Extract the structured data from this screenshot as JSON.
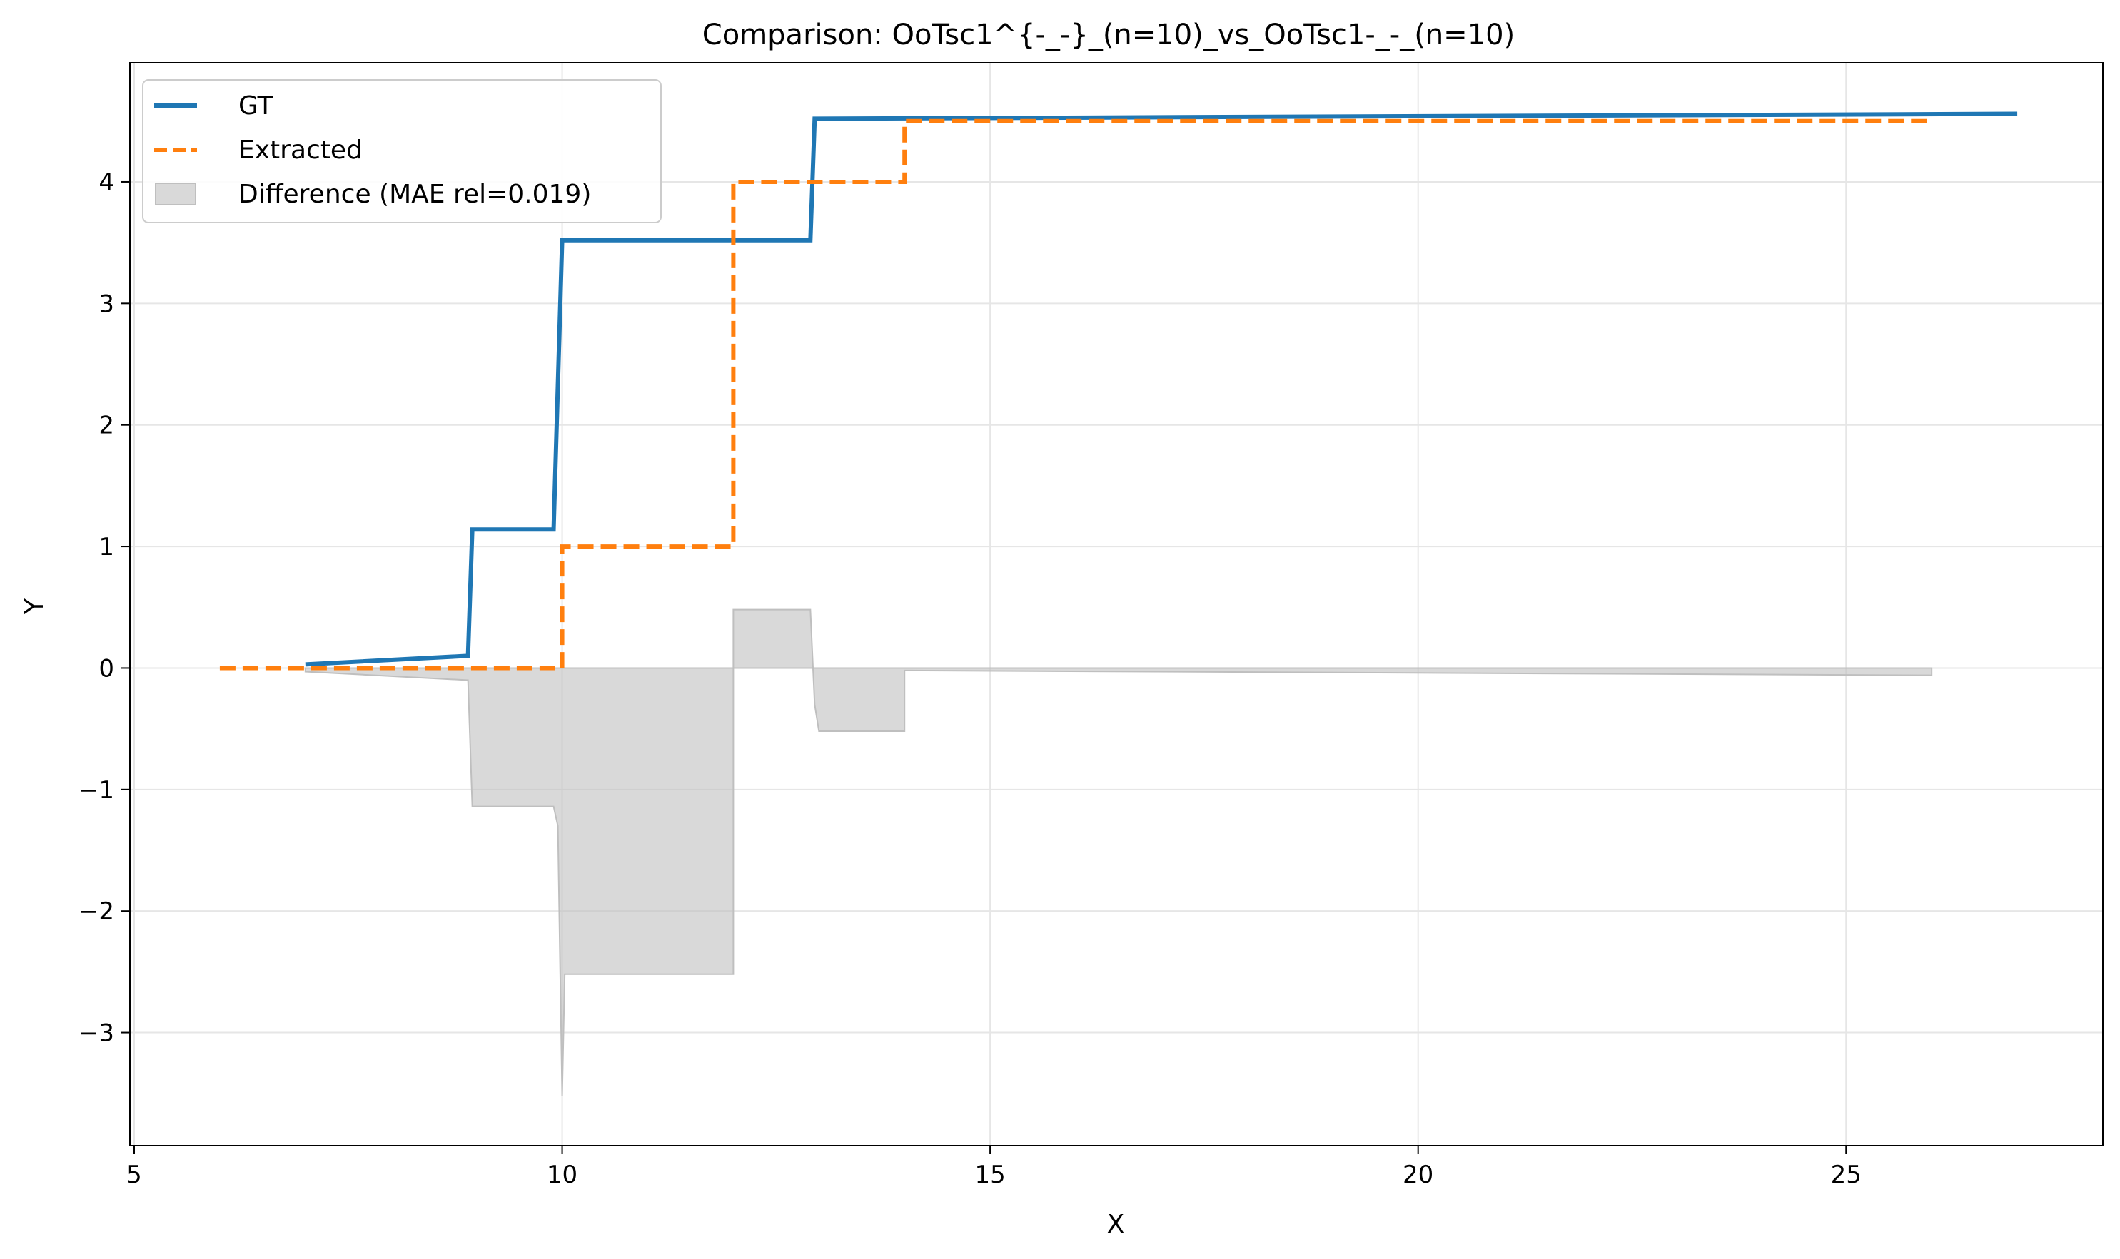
{
  "chart_data": {
    "type": "line",
    "title": "Comparison: OoTsc1^{-_-}_(n=10)_vs_OoTsc1-_-_(n=10)",
    "xlabel": "X",
    "ylabel": "Y",
    "xlim": [
      4.95,
      28.0
    ],
    "ylim": [
      -3.93,
      4.98
    ],
    "xticks": [
      5,
      10,
      15,
      20,
      25
    ],
    "xtick_labels": [
      "5",
      "10",
      "15",
      "20",
      "25"
    ],
    "yticks": [
      -3,
      -2,
      -1,
      0,
      1,
      2,
      3,
      4
    ],
    "ytick_labels": [
      "−3",
      "−2",
      "−1",
      "0",
      "1",
      "2",
      "3",
      "4"
    ],
    "grid": true,
    "legend_position": "upper-left",
    "series": [
      {
        "name": "GT",
        "style": "solid",
        "color": "#1f77b4",
        "x": [
          7.0,
          8.9,
          8.95,
          9.9,
          10.0,
          12.9,
          12.95,
          27.0
        ],
        "y": [
          0.03,
          0.1,
          1.14,
          1.14,
          3.52,
          3.52,
          4.52,
          4.56
        ]
      },
      {
        "name": "Extracted",
        "style": "dashed",
        "color": "#ff7f0e",
        "x": [
          6.0,
          10.0,
          10.0,
          12.0,
          12.0,
          14.0,
          14.0,
          26.0
        ],
        "y": [
          0.0,
          0.0,
          1.0,
          1.0,
          4.0,
          4.0,
          4.5,
          4.5
        ]
      },
      {
        "name": "Difference (MAE rel=0.019)",
        "style": "fill",
        "color": "#bfbfbf",
        "x": [
          7.0,
          8.9,
          8.95,
          9.9,
          9.95,
          10.0,
          10.03,
          12.0,
          12.0,
          12.9,
          12.95,
          13.0,
          14.0,
          14.0,
          26.0
        ],
        "y": [
          -0.03,
          -0.1,
          -1.14,
          -1.14,
          -1.3,
          -3.52,
          -2.52,
          -2.52,
          0.48,
          0.48,
          -0.3,
          -0.52,
          -0.52,
          -0.02,
          -0.06
        ]
      }
    ]
  }
}
